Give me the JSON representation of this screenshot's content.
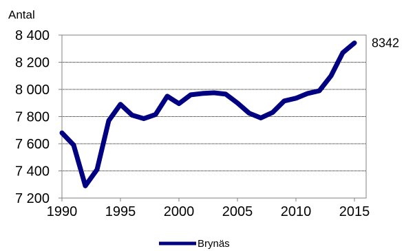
{
  "chart_data": {
    "type": "line",
    "ylabel": "Antal",
    "ylim": [
      7200,
      8400
    ],
    "y_ticks": [
      7200,
      7400,
      7600,
      7800,
      8000,
      8200,
      8400
    ],
    "y_tick_labels": [
      "7 200",
      "7 400",
      "7 600",
      "7 800",
      "8 000",
      "8 200",
      "8 400"
    ],
    "xlim": [
      1990,
      2016
    ],
    "x_ticks": [
      1990,
      1995,
      2000,
      2005,
      2010,
      2015
    ],
    "x_tick_labels": [
      "1990",
      "1995",
      "2000",
      "2005",
      "2010",
      "2015"
    ],
    "grid": true,
    "legend_position": "bottom",
    "end_label": "8342",
    "series": [
      {
        "name": "Brynäs",
        "color": "#000080",
        "x": [
          1990,
          1991,
          1992,
          1993,
          1994,
          1995,
          1996,
          1997,
          1998,
          1999,
          2000,
          2001,
          2002,
          2003,
          2004,
          2005,
          2006,
          2007,
          2008,
          2009,
          2010,
          2011,
          2012,
          2013,
          2014,
          2015
        ],
        "y": [
          7680,
          7590,
          7290,
          7410,
          7770,
          7890,
          7810,
          7785,
          7815,
          7950,
          7895,
          7960,
          7970,
          7975,
          7965,
          7900,
          7825,
          7790,
          7830,
          7915,
          7935,
          7970,
          7990,
          8100,
          8270,
          8342
        ]
      }
    ]
  }
}
